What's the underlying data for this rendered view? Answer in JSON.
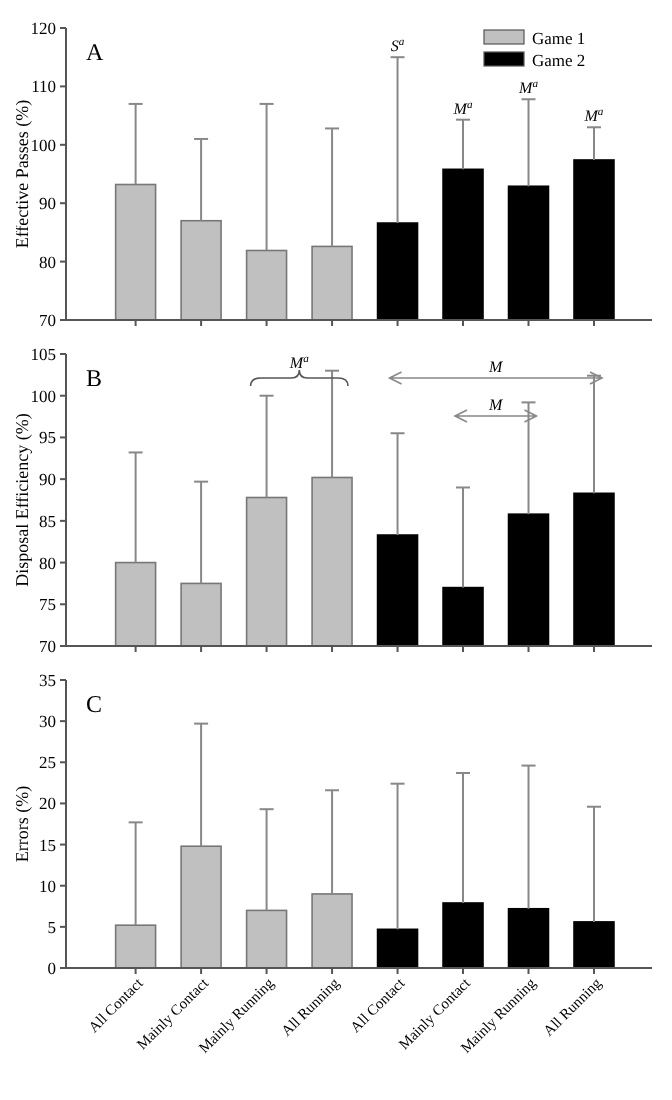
{
  "chart_data": [
    {
      "type": "bar",
      "ylabel": "Effective Passes (%)",
      "categories": [
        null,
        null,
        null,
        null,
        null,
        null,
        null,
        null
      ],
      "ylim": [
        70,
        120
      ],
      "yticks": [
        70,
        80,
        90,
        100,
        110,
        120
      ],
      "tick_labels": "y",
      "legend": "top right",
      "grid": false,
      "annotations": [
        "A",
        "S$^{a}$",
        "M$^{a}$",
        "M$^{a}$",
        "M$^{a}$"
      ],
      "series": [
        {
          "name": "Game 1",
          "color": "#c0c0c0",
          "values": [
            93.2,
            87.0,
            81.9,
            82.6,
            null,
            null,
            null,
            null
          ],
          "errors": [
            [
              93.2,
              107
            ],
            [
              87.0,
              101
            ],
            [
              81.9,
              107
            ],
            [
              82.6,
              102.8
            ],
            null,
            null,
            null,
            null
          ]
        },
        {
          "name": "Game 2",
          "color": "#000000",
          "values": [
            null,
            null,
            null,
            null,
            86.6,
            95.8,
            92.9,
            97.4
          ],
          "errors": [
            null,
            null,
            null,
            null,
            [
              86.6,
              115
            ],
            [
              95.8,
              104.3
            ],
            [
              92.9,
              107.8
            ],
            [
              97.4,
              103
            ]
          ]
        }
      ]
    },
    {
      "type": "bar",
      "ylabel": "Disposal Efficiency (%)",
      "categories": [
        null,
        null,
        null,
        null,
        null,
        null,
        null,
        null
      ],
      "ylim": [
        70,
        105
      ],
      "yticks": [
        70,
        75,
        80,
        85,
        90,
        95,
        100,
        105
      ],
      "tick_labels": "y",
      "grid": false,
      "annotations": [
        "B",
        "M$^{a}$",
        "M",
        "M"
      ],
      "series": [
        {
          "color": "#c0c0c0",
          "values": [
            80.0,
            77.5,
            87.8,
            90.2,
            null,
            null,
            null,
            null
          ],
          "errors": [
            [
              80.0,
              93.2
            ],
            [
              77.5,
              89.7
            ],
            [
              87.8,
              100
            ],
            [
              90.2,
              103
            ],
            null,
            null,
            null,
            null
          ]
        },
        {
          "color": "#000000",
          "values": [
            null,
            null,
            null,
            null,
            83.3,
            77.0,
            85.8,
            88.3
          ],
          "errors": [
            null,
            null,
            null,
            null,
            [
              83.3,
              95.5
            ],
            [
              77.0,
              89
            ],
            [
              85.8,
              99.2
            ],
            [
              88.3,
              102.4
            ]
          ]
        }
      ]
    },
    {
      "type": "bar",
      "ylabel": "Errors (%)",
      "categories": [
        "All Contact",
        "Mainly Contact",
        "Mainly Running",
        "All Running",
        "All Contact",
        "Mainly Contact",
        "Mainly Running",
        "All Running"
      ],
      "ylim": [
        0,
        35
      ],
      "yticks": [
        0,
        5,
        10,
        15,
        20,
        25,
        30,
        35
      ],
      "grid": false,
      "annotations": [
        "C"
      ],
      "series": [
        {
          "color": "#c0c0c0",
          "values": [
            5.2,
            14.8,
            7.0,
            9.0,
            null,
            null,
            null,
            null
          ],
          "errors": [
            [
              5.2,
              17.7
            ],
            [
              14.8,
              29.7
            ],
            [
              7.0,
              19.3
            ],
            [
              9.0,
              21.6
            ],
            null,
            null,
            null,
            null
          ]
        },
        {
          "color": "#000000",
          "values": [
            null,
            null,
            null,
            null,
            4.7,
            7.9,
            7.2,
            5.6
          ],
          "errors": [
            null,
            null,
            null,
            null,
            [
              4.7,
              22.4
            ],
            [
              7.9,
              23.7
            ],
            [
              7.2,
              24.6
            ],
            [
              5.6,
              19.6
            ]
          ]
        }
      ]
    }
  ]
}
